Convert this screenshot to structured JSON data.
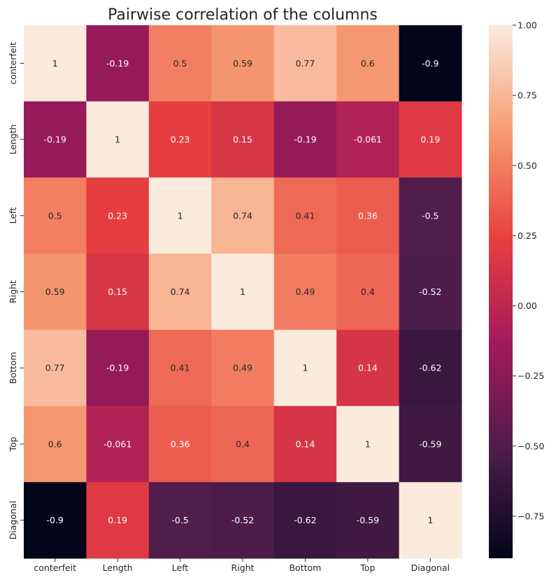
{
  "chart_data": {
    "type": "heatmap",
    "title": "Pairwise correlation of the columns",
    "xlabel": "",
    "ylabel": "",
    "x_categories": [
      "conterfeit",
      "Length",
      "Left",
      "Right",
      "Bottom",
      "Top",
      "Diagonal"
    ],
    "y_categories": [
      "conterfeit",
      "Length",
      "Left",
      "Right",
      "Bottom",
      "Top",
      "Diagonal"
    ],
    "values": [
      [
        1,
        -0.19,
        0.5,
        0.59,
        0.77,
        0.6,
        -0.9
      ],
      [
        -0.19,
        1,
        0.23,
        0.15,
        -0.19,
        -0.061,
        0.19
      ],
      [
        0.5,
        0.23,
        1,
        0.74,
        0.41,
        0.36,
        -0.5
      ],
      [
        0.59,
        0.15,
        0.74,
        1,
        0.49,
        0.4,
        -0.52
      ],
      [
        0.77,
        -0.19,
        0.41,
        0.49,
        1,
        0.14,
        -0.62
      ],
      [
        0.6,
        -0.061,
        0.36,
        0.4,
        0.14,
        1,
        -0.59
      ],
      [
        -0.9,
        0.19,
        -0.5,
        -0.52,
        -0.62,
        -0.59,
        1
      ]
    ],
    "cell_labels": [
      [
        "1",
        "-0.19",
        "0.5",
        "0.59",
        "0.77",
        "0.6",
        "-0.9"
      ],
      [
        "-0.19",
        "1",
        "0.23",
        "0.15",
        "-0.19",
        "-0.061",
        "0.19"
      ],
      [
        "0.5",
        "0.23",
        "1",
        "0.74",
        "0.41",
        "0.36",
        "-0.5"
      ],
      [
        "0.59",
        "0.15",
        "0.74",
        "1",
        "0.49",
        "0.4",
        "-0.52"
      ],
      [
        "0.77",
        "-0.19",
        "0.41",
        "0.49",
        "1",
        "0.14",
        "-0.62"
      ],
      [
        "0.6",
        "-0.061",
        "0.36",
        "0.4",
        "0.14",
        "1",
        "-0.59"
      ],
      [
        "-0.9",
        "0.19",
        "-0.5",
        "-0.52",
        "-0.62",
        "-0.59",
        "1"
      ]
    ],
    "colorbar": {
      "vmin": -0.9,
      "vmax": 1.0,
      "ticks": [
        1.0,
        0.75,
        0.5,
        0.25,
        0.0,
        -0.25,
        -0.5,
        -0.75
      ],
      "tick_labels": [
        "1.00",
        "0.75",
        "0.50",
        "0.25",
        "0.00",
        "−0.25",
        "−0.50",
        "−0.75"
      ],
      "colormap": "rocket",
      "colormap_stops": [
        "#03051a",
        "#4c1d4b",
        "#a11a5b",
        "#e83f3f",
        "#f69c73",
        "#faebdd"
      ]
    },
    "grid": false,
    "legend": "colorbar-right"
  }
}
